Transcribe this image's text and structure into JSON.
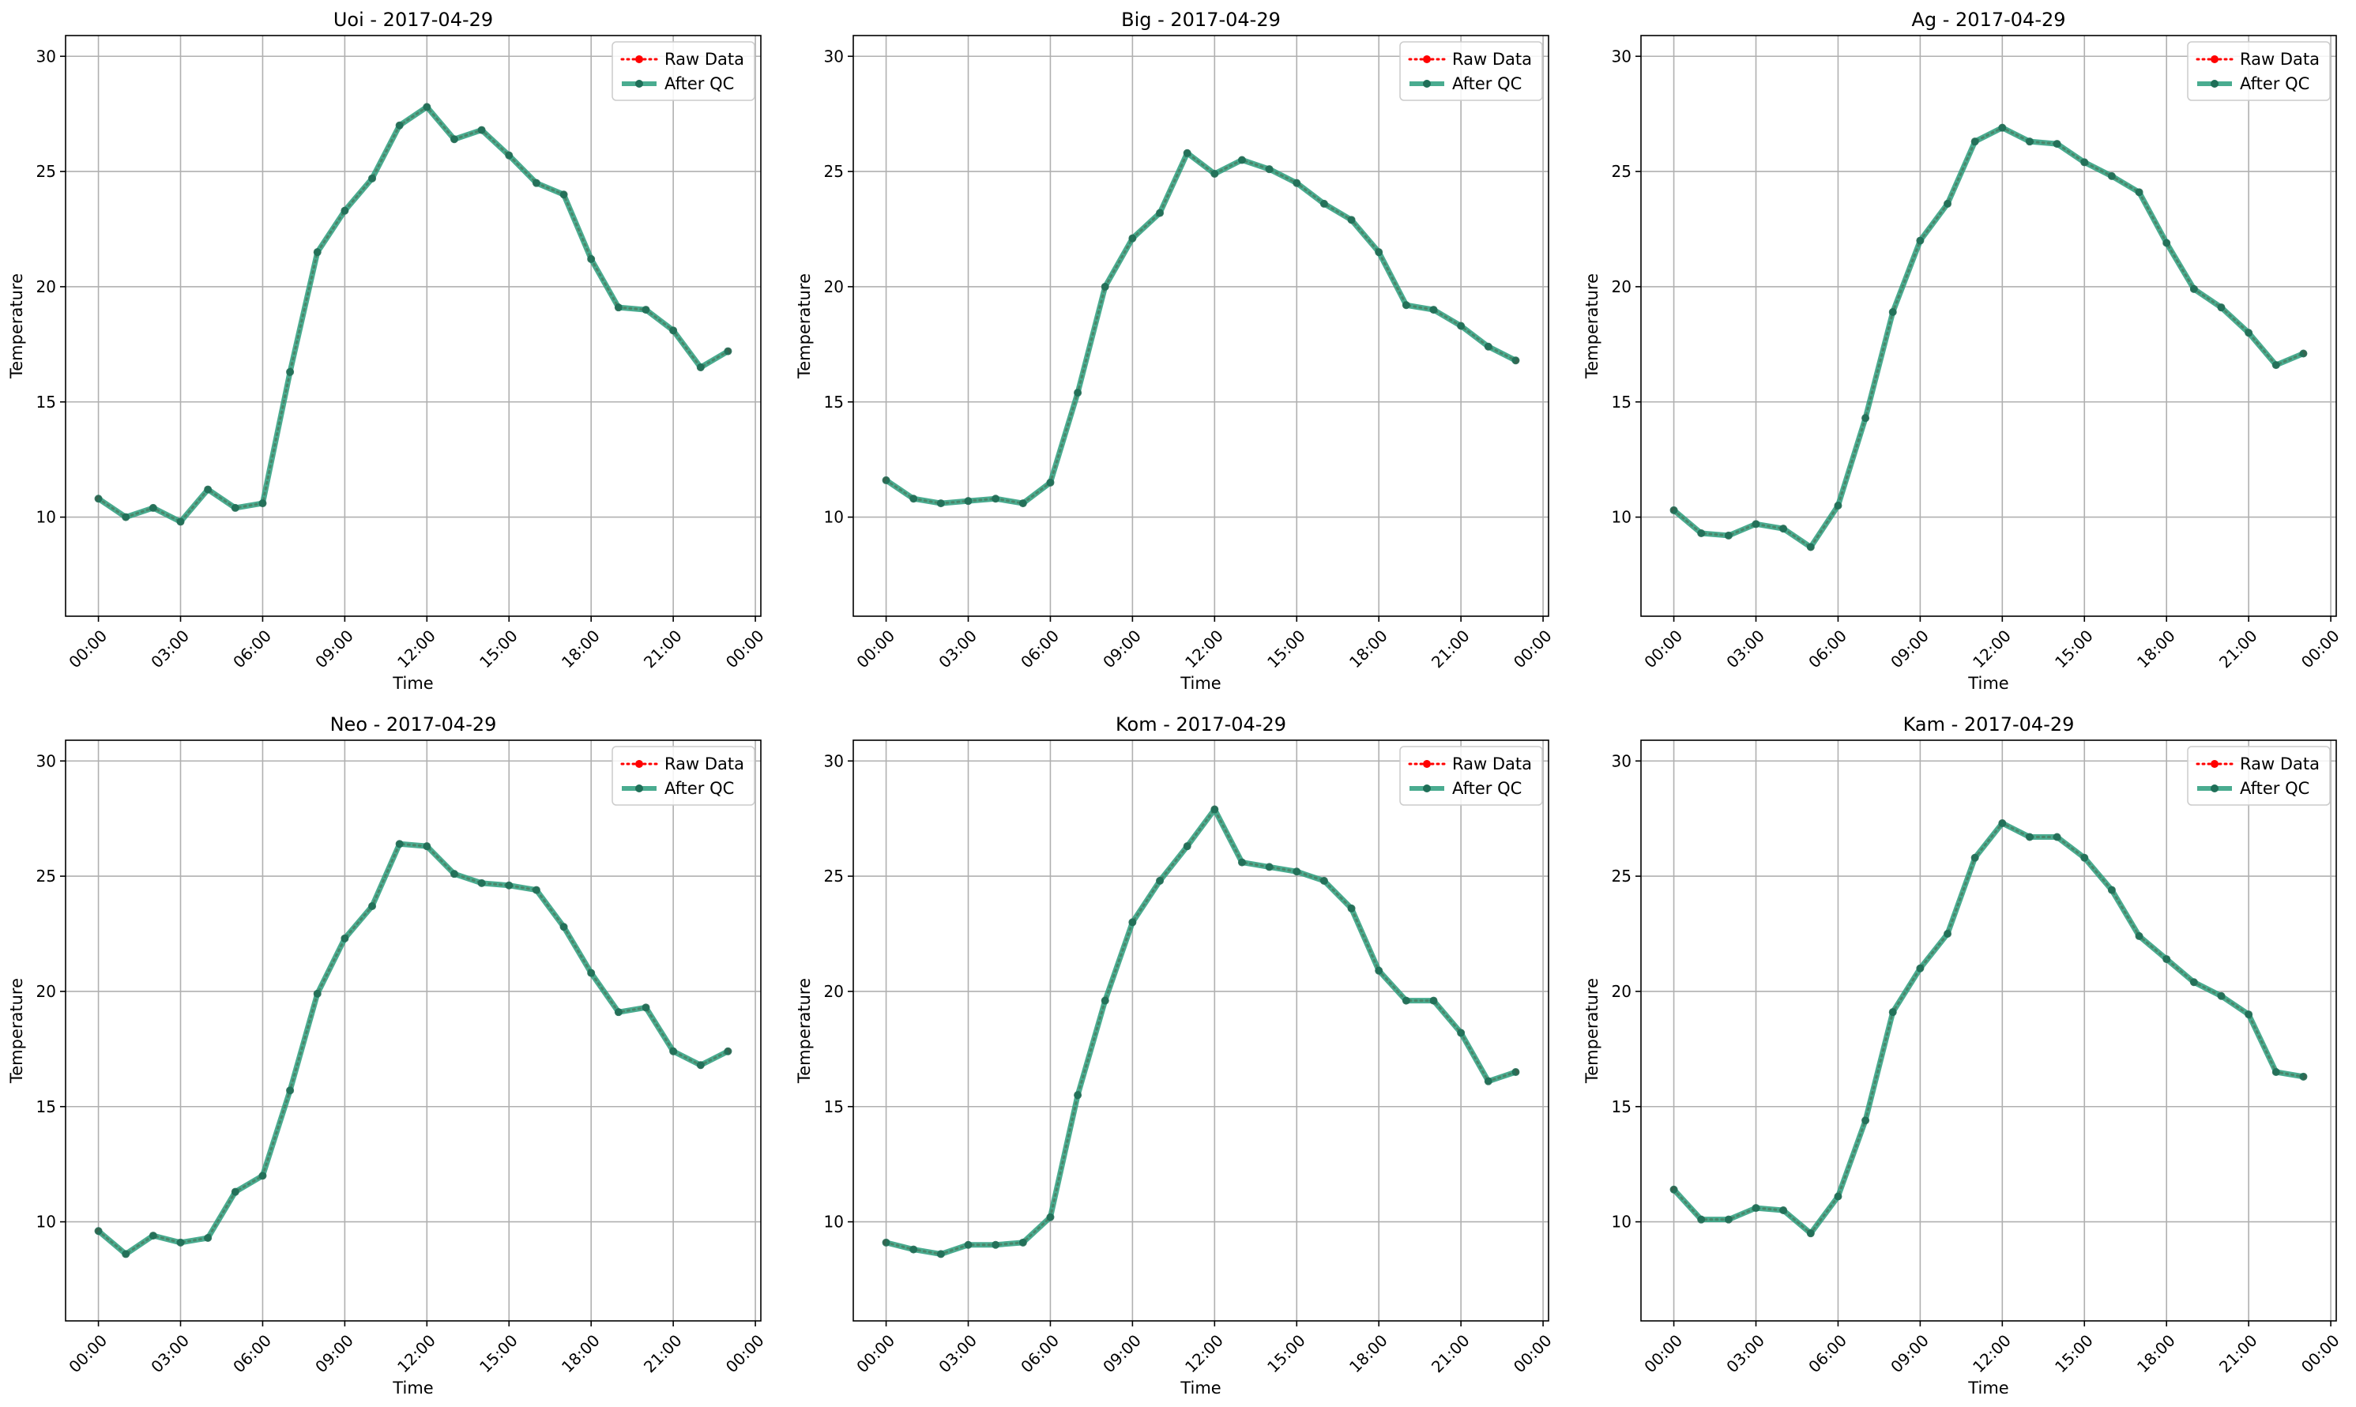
{
  "chart_data": [
    {
      "type": "line",
      "title": "Uoi - 2017-04-29",
      "xlabel": "Time",
      "ylabel": "Temperature",
      "x_ticks": [
        "00:00",
        "03:00",
        "06:00",
        "09:00",
        "12:00",
        "15:00",
        "18:00",
        "21:00",
        "00:00"
      ],
      "y_ticks": [
        10,
        15,
        20,
        25,
        30
      ],
      "xlim": [
        -1.2,
        24.2
      ],
      "ylim": [
        5.7,
        30.9
      ],
      "grid": true,
      "legend_placement": "top-right",
      "x_hours": [
        0,
        1,
        2,
        3,
        4,
        5,
        6,
        7,
        8,
        9,
        10,
        11,
        12,
        13,
        14,
        15,
        16,
        17,
        18,
        19,
        20,
        21,
        22,
        23
      ],
      "series": [
        {
          "name": "Raw Data",
          "style": "dotted-marker",
          "color": "#ff0000",
          "values": [
            10.8,
            10.0,
            10.4,
            9.8,
            11.2,
            10.4,
            10.6,
            16.3,
            21.5,
            23.3,
            24.7,
            27.0,
            27.8,
            26.4,
            26.8,
            25.7,
            24.5,
            24.0,
            21.2,
            19.1,
            19.0,
            18.1,
            16.5,
            17.2
          ]
        },
        {
          "name": "After QC",
          "style": "solid-marker",
          "color": "#2a9d7c",
          "values": [
            10.8,
            10.0,
            10.4,
            9.8,
            11.2,
            10.4,
            10.6,
            16.3,
            21.5,
            23.3,
            24.7,
            27.0,
            27.8,
            26.4,
            26.8,
            25.7,
            24.5,
            24.0,
            21.2,
            19.1,
            19.0,
            18.1,
            16.5,
            17.2
          ]
        }
      ]
    },
    {
      "type": "line",
      "title": "Big - 2017-04-29",
      "xlabel": "Time",
      "ylabel": "Temperature",
      "x_ticks": [
        "00:00",
        "03:00",
        "06:00",
        "09:00",
        "12:00",
        "15:00",
        "18:00",
        "21:00",
        "00:00"
      ],
      "y_ticks": [
        10,
        15,
        20,
        25,
        30
      ],
      "xlim": [
        -1.2,
        24.2
      ],
      "ylim": [
        5.7,
        30.9
      ],
      "grid": true,
      "legend_placement": "top-right",
      "x_hours": [
        0,
        1,
        2,
        3,
        4,
        5,
        6,
        7,
        8,
        9,
        10,
        11,
        12,
        13,
        14,
        15,
        16,
        17,
        18,
        19,
        20,
        21,
        22,
        23
      ],
      "series": [
        {
          "name": "Raw Data",
          "style": "dotted-marker",
          "color": "#ff0000",
          "values": [
            11.6,
            10.8,
            10.6,
            10.7,
            10.8,
            10.6,
            11.5,
            15.4,
            20.0,
            22.1,
            23.2,
            25.8,
            24.9,
            25.5,
            25.1,
            24.5,
            23.6,
            22.9,
            21.5,
            19.2,
            19.0,
            18.3,
            17.4,
            16.8
          ]
        },
        {
          "name": "After QC",
          "style": "solid-marker",
          "color": "#2a9d7c",
          "values": [
            11.6,
            10.8,
            10.6,
            10.7,
            10.8,
            10.6,
            11.5,
            15.4,
            20.0,
            22.1,
            23.2,
            25.8,
            24.9,
            25.5,
            25.1,
            24.5,
            23.6,
            22.9,
            21.5,
            19.2,
            19.0,
            18.3,
            17.4,
            16.8
          ]
        }
      ]
    },
    {
      "type": "line",
      "title": "Ag - 2017-04-29",
      "xlabel": "Time",
      "ylabel": "Temperature",
      "x_ticks": [
        "00:00",
        "03:00",
        "06:00",
        "09:00",
        "12:00",
        "15:00",
        "18:00",
        "21:00",
        "00:00"
      ],
      "y_ticks": [
        10,
        15,
        20,
        25,
        30
      ],
      "xlim": [
        -1.2,
        24.2
      ],
      "ylim": [
        5.7,
        30.9
      ],
      "grid": true,
      "legend_placement": "top-right",
      "x_hours": [
        0,
        1,
        2,
        3,
        4,
        5,
        6,
        7,
        8,
        9,
        10,
        11,
        12,
        13,
        14,
        15,
        16,
        17,
        18,
        19,
        20,
        21,
        22,
        23
      ],
      "series": [
        {
          "name": "Raw Data",
          "style": "dotted-marker",
          "color": "#ff0000",
          "values": [
            10.3,
            9.3,
            9.2,
            9.7,
            9.5,
            8.7,
            10.5,
            14.3,
            18.9,
            22.0,
            23.6,
            26.3,
            26.9,
            26.3,
            26.2,
            25.4,
            24.8,
            24.1,
            21.9,
            19.9,
            19.1,
            18.0,
            16.6,
            17.1
          ]
        },
        {
          "name": "After QC",
          "style": "solid-marker",
          "color": "#2a9d7c",
          "values": [
            10.3,
            9.3,
            9.2,
            9.7,
            9.5,
            8.7,
            10.5,
            14.3,
            18.9,
            22.0,
            23.6,
            26.3,
            26.9,
            26.3,
            26.2,
            25.4,
            24.8,
            24.1,
            21.9,
            19.9,
            19.1,
            18.0,
            16.6,
            17.1
          ]
        }
      ]
    },
    {
      "type": "line",
      "title": "Neo - 2017-04-29",
      "xlabel": "Time",
      "ylabel": "Temperature",
      "x_ticks": [
        "00:00",
        "03:00",
        "06:00",
        "09:00",
        "12:00",
        "15:00",
        "18:00",
        "21:00",
        "00:00"
      ],
      "y_ticks": [
        10,
        15,
        20,
        25,
        30
      ],
      "xlim": [
        -1.2,
        24.2
      ],
      "ylim": [
        5.7,
        30.9
      ],
      "grid": true,
      "legend_placement": "top-right",
      "x_hours": [
        0,
        1,
        2,
        3,
        4,
        5,
        6,
        7,
        8,
        9,
        10,
        11,
        12,
        13,
        14,
        15,
        16,
        17,
        18,
        19,
        20,
        21,
        22,
        23
      ],
      "series": [
        {
          "name": "Raw Data",
          "style": "dotted-marker",
          "color": "#ff0000",
          "values": [
            9.6,
            8.6,
            9.4,
            9.1,
            9.3,
            11.3,
            12.0,
            15.7,
            19.9,
            22.3,
            23.7,
            26.4,
            26.3,
            25.1,
            24.7,
            24.6,
            24.4,
            22.8,
            20.8,
            19.1,
            19.3,
            17.4,
            16.8,
            17.4
          ]
        },
        {
          "name": "After QC",
          "style": "solid-marker",
          "color": "#2a9d7c",
          "values": [
            9.6,
            8.6,
            9.4,
            9.1,
            9.3,
            11.3,
            12.0,
            15.7,
            19.9,
            22.3,
            23.7,
            26.4,
            26.3,
            25.1,
            24.7,
            24.6,
            24.4,
            22.8,
            20.8,
            19.1,
            19.3,
            17.4,
            16.8,
            17.4
          ]
        }
      ]
    },
    {
      "type": "line",
      "title": "Kom - 2017-04-29",
      "xlabel": "Time",
      "ylabel": "Temperature",
      "x_ticks": [
        "00:00",
        "03:00",
        "06:00",
        "09:00",
        "12:00",
        "15:00",
        "18:00",
        "21:00",
        "00:00"
      ],
      "y_ticks": [
        10,
        15,
        20,
        25,
        30
      ],
      "xlim": [
        -1.2,
        24.2
      ],
      "ylim": [
        5.7,
        30.9
      ],
      "grid": true,
      "legend_placement": "top-right",
      "x_hours": [
        0,
        1,
        2,
        3,
        4,
        5,
        6,
        7,
        8,
        9,
        10,
        11,
        12,
        13,
        14,
        15,
        16,
        17,
        18,
        19,
        20,
        21,
        22,
        23
      ],
      "series": [
        {
          "name": "Raw Data",
          "style": "dotted-marker",
          "color": "#ff0000",
          "values": [
            9.1,
            8.8,
            8.6,
            9.0,
            9.0,
            9.1,
            10.2,
            15.5,
            19.6,
            23.0,
            24.8,
            26.3,
            27.9,
            25.6,
            25.4,
            25.2,
            24.8,
            23.6,
            20.9,
            19.6,
            19.6,
            18.2,
            16.1,
            16.5
          ]
        },
        {
          "name": "After QC",
          "style": "solid-marker",
          "color": "#2a9d7c",
          "values": [
            9.1,
            8.8,
            8.6,
            9.0,
            9.0,
            9.1,
            10.2,
            15.5,
            19.6,
            23.0,
            24.8,
            26.3,
            27.9,
            25.6,
            25.4,
            25.2,
            24.8,
            23.6,
            20.9,
            19.6,
            19.6,
            18.2,
            16.1,
            16.5
          ]
        }
      ]
    },
    {
      "type": "line",
      "title": "Kam - 2017-04-29",
      "xlabel": "Time",
      "ylabel": "Temperature",
      "x_ticks": [
        "00:00",
        "03:00",
        "06:00",
        "09:00",
        "12:00",
        "15:00",
        "18:00",
        "21:00",
        "00:00"
      ],
      "y_ticks": [
        10,
        15,
        20,
        25,
        30
      ],
      "xlim": [
        -1.2,
        24.2
      ],
      "ylim": [
        5.7,
        30.9
      ],
      "grid": true,
      "legend_placement": "top-right",
      "x_hours": [
        0,
        1,
        2,
        3,
        4,
        5,
        6,
        7,
        8,
        9,
        10,
        11,
        12,
        13,
        14,
        15,
        16,
        17,
        18,
        19,
        20,
        21,
        22,
        23
      ],
      "series": [
        {
          "name": "Raw Data",
          "style": "dotted-marker",
          "color": "#ff0000",
          "values": [
            11.4,
            10.1,
            10.1,
            10.6,
            10.5,
            9.5,
            11.1,
            14.4,
            19.1,
            21.0,
            22.5,
            25.8,
            27.3,
            26.7,
            26.7,
            25.8,
            24.4,
            22.4,
            21.4,
            20.4,
            19.8,
            19.0,
            16.5,
            16.3
          ]
        },
        {
          "name": "After QC",
          "style": "solid-marker",
          "color": "#2a9d7c",
          "values": [
            11.4,
            10.1,
            10.1,
            10.6,
            10.5,
            9.5,
            11.1,
            14.4,
            19.1,
            21.0,
            22.5,
            25.8,
            27.3,
            26.7,
            26.7,
            25.8,
            24.4,
            22.4,
            21.4,
            20.4,
            19.8,
            19.0,
            16.5,
            16.3
          ]
        }
      ]
    }
  ]
}
